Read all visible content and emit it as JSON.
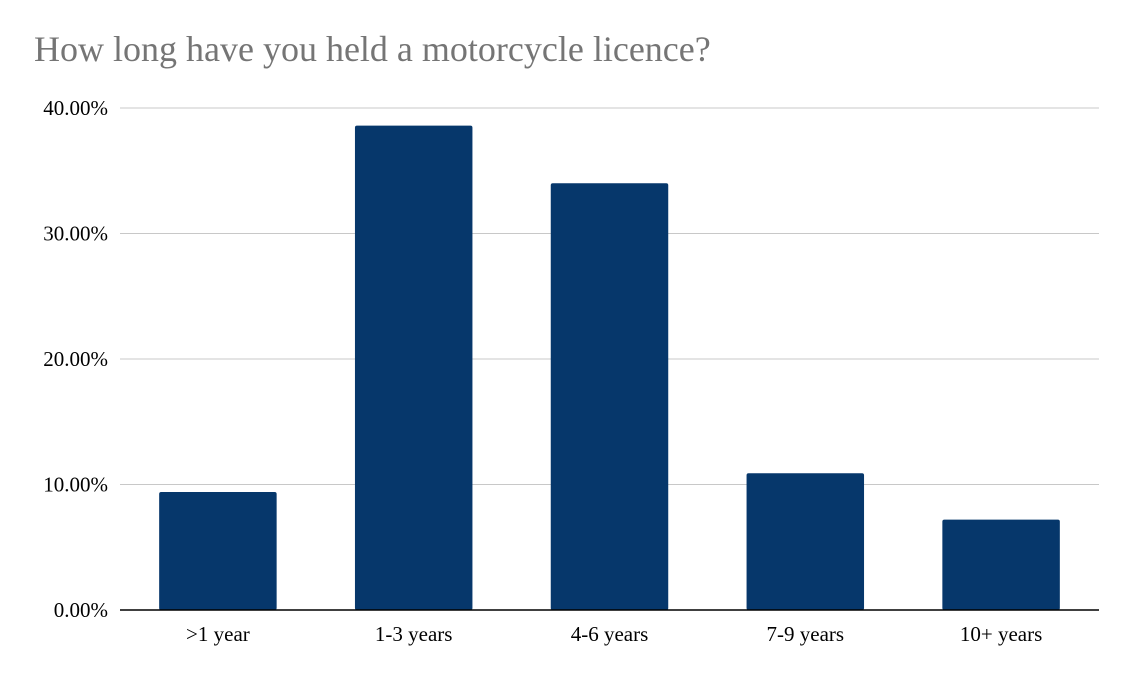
{
  "chart_data": {
    "type": "bar",
    "title": "How long have you held a motorcycle licence?",
    "xlabel": "",
    "ylabel": "",
    "categories": [
      ">1 year",
      "1-3 years",
      "4-6 years",
      "7-9 years",
      "10+ years"
    ],
    "series": [
      {
        "values": [
          9.4,
          38.6,
          34.0,
          10.9,
          7.2
        ]
      }
    ],
    "ylim": [
      0,
      40
    ],
    "yticks": [
      0,
      10,
      20,
      30,
      40
    ],
    "ytick_labels": [
      "0.00%",
      "10.00%",
      "20.00%",
      "30.00%",
      "40.00%"
    ],
    "grid": true,
    "legend": "none",
    "colors": {
      "bar": "#06376B",
      "grid": "#C8C8C8",
      "axis": "#000000",
      "title": "#757575"
    }
  }
}
